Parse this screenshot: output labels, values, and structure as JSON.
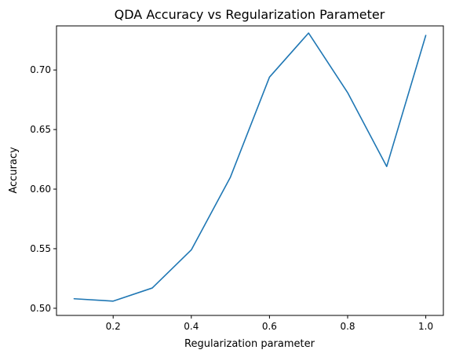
{
  "chart_data": {
    "type": "line",
    "title": "QDA Accuracy vs Regularization Parameter",
    "xlabel": "Regularization parameter",
    "ylabel": "Accuracy",
    "xlim": [
      0.055,
      1.045
    ],
    "ylim": [
      0.494,
      0.737
    ],
    "xticks": [
      0.2,
      0.4,
      0.6,
      0.8,
      1.0
    ],
    "xtick_labels": [
      "0.2",
      "0.4",
      "0.6",
      "0.8",
      "1.0"
    ],
    "yticks": [
      0.5,
      0.55,
      0.6,
      0.65,
      0.7
    ],
    "ytick_labels": [
      "0.50",
      "0.55",
      "0.60",
      "0.65",
      "0.70"
    ],
    "grid": false,
    "series": [
      {
        "color": "#1f77b4",
        "x": [
          0.1,
          0.2,
          0.3,
          0.4,
          0.5,
          0.6,
          0.7,
          0.8,
          0.9,
          1.0
        ],
        "y": [
          0.508,
          0.506,
          0.517,
          0.549,
          0.61,
          0.694,
          0.731,
          0.681,
          0.619,
          0.729
        ]
      }
    ]
  }
}
